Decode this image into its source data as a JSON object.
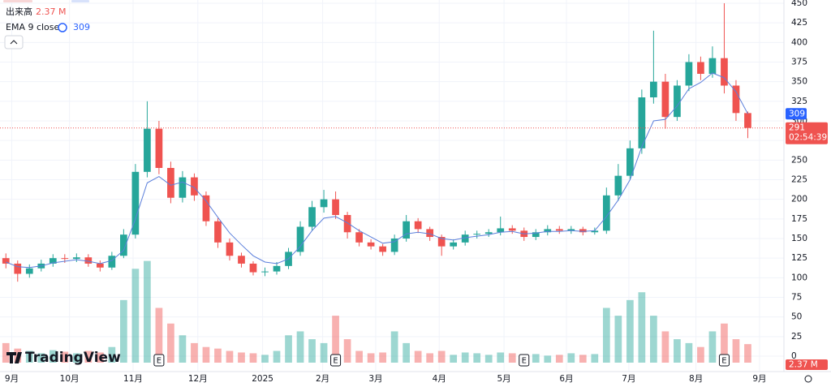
{
  "chart_data": {
    "type": "candlestick",
    "xlim": [
      -0.5,
      66
    ],
    "ylim": [
      0,
      450
    ],
    "yticks": [
      0,
      25,
      50,
      75,
      100,
      125,
      150,
      175,
      200,
      225,
      250,
      275,
      300,
      325,
      350,
      375,
      400,
      425,
      450
    ],
    "xticks": [
      {
        "value": 0.5,
        "label": "9月"
      },
      {
        "value": 5.4,
        "label": "10月"
      },
      {
        "value": 10.8,
        "label": "11月"
      },
      {
        "value": 16.3,
        "label": "12月"
      },
      {
        "value": 21.8,
        "label": "2025"
      },
      {
        "value": 26.9,
        "label": "2月"
      },
      {
        "value": 31.4,
        "label": "3月"
      },
      {
        "value": 36.8,
        "label": "4月"
      },
      {
        "value": 42.3,
        "label": "5月"
      },
      {
        "value": 47.6,
        "label": "6月"
      },
      {
        "value": 52.9,
        "label": "7月"
      },
      {
        "value": 58.6,
        "label": "8月"
      },
      {
        "value": 64,
        "label": "9月"
      }
    ],
    "grid": true,
    "up_color": "#26a69a",
    "down_color": "#ef5350",
    "open": [
      125,
      118,
      105,
      112,
      118,
      125,
      124,
      126,
      118,
      113,
      128,
      155,
      235,
      290,
      240,
      202,
      228,
      205,
      172,
      145,
      128,
      118,
      107,
      108,
      115,
      133,
      165,
      190,
      200,
      180,
      158,
      145,
      140,
      133,
      150,
      172,
      162,
      152,
      140,
      145,
      155,
      156,
      158,
      163,
      160,
      152,
      158,
      162,
      160,
      162,
      158,
      160,
      205,
      230,
      265,
      330,
      350,
      305,
      345,
      375,
      360,
      380,
      345,
      310
    ],
    "high": [
      131,
      122,
      117,
      123,
      130,
      130,
      131,
      130,
      122,
      133,
      162,
      245,
      325,
      300,
      248,
      236,
      233,
      210,
      176,
      150,
      132,
      121,
      113,
      120,
      138,
      172,
      198,
      212,
      210,
      184,
      162,
      149,
      143,
      155,
      180,
      176,
      165,
      155,
      149,
      160,
      160,
      162,
      178,
      167,
      164,
      162,
      167,
      166,
      166,
      165,
      164,
      215,
      245,
      275,
      340,
      415,
      360,
      352,
      385,
      382,
      395,
      450,
      352,
      312
    ],
    "low": [
      112,
      95,
      100,
      108,
      114,
      119,
      120,
      114,
      108,
      110,
      125,
      150,
      228,
      232,
      195,
      196,
      198,
      166,
      138,
      122,
      113,
      103,
      102,
      104,
      111,
      128,
      160,
      183,
      175,
      150,
      140,
      136,
      128,
      129,
      146,
      157,
      147,
      128,
      136,
      141,
      150,
      152,
      154,
      156,
      147,
      148,
      154,
      156,
      156,
      154,
      155,
      156,
      198,
      225,
      258,
      322,
      290,
      300,
      338,
      352,
      355,
      335,
      300,
      278
    ],
    "close": [
      118,
      105,
      112,
      118,
      125,
      124,
      126,
      118,
      113,
      128,
      155,
      235,
      290,
      240,
      202,
      228,
      205,
      172,
      145,
      128,
      118,
      107,
      108,
      115,
      133,
      165,
      190,
      200,
      180,
      158,
      145,
      140,
      133,
      150,
      172,
      162,
      152,
      140,
      145,
      155,
      156,
      158,
      163,
      160,
      152,
      158,
      162,
      160,
      162,
      158,
      160,
      205,
      230,
      265,
      330,
      350,
      305,
      345,
      375,
      360,
      380,
      345,
      310,
      291
    ],
    "volume": {
      "name": "出来高",
      "last_label": "2.37 M",
      "ylim": [
        0,
        14
      ],
      "values": [
        2.5,
        1.8,
        1.5,
        1.2,
        1.6,
        1.4,
        1.2,
        1.5,
        1.3,
        2.0,
        8.0,
        12.0,
        13.0,
        7.0,
        5.0,
        3.5,
        2.5,
        2.0,
        1.8,
        1.5,
        1.3,
        1.2,
        1.0,
        1.5,
        3.5,
        4.0,
        3.0,
        2.5,
        6.0,
        3.0,
        1.5,
        1.2,
        1.3,
        4.0,
        2.5,
        1.5,
        1.2,
        1.5,
        1.0,
        1.3,
        1.2,
        1.0,
        1.3,
        1.2,
        1.0,
        1.1,
        0.9,
        1.0,
        1.2,
        1.0,
        1.1,
        7.0,
        6.0,
        8.0,
        9.0,
        6.0,
        4.0,
        3.0,
        2.5,
        2.0,
        4.0,
        5.0,
        3.0,
        2.37
      ]
    },
    "ema": {
      "name": "EMA 9 close",
      "color": "#5b7fdb",
      "values": [
        120,
        114,
        113,
        115,
        119,
        121,
        123,
        121,
        118,
        122,
        135,
        175,
        221,
        229,
        218,
        222,
        215,
        198,
        177,
        157,
        142,
        128,
        120,
        118,
        124,
        140,
        160,
        176,
        178,
        170,
        160,
        152,
        144,
        146,
        156,
        158,
        156,
        150,
        148,
        151,
        153,
        155,
        158,
        159,
        156,
        157,
        159,
        159,
        160,
        159,
        160,
        178,
        199,
        225,
        267,
        300,
        302,
        319,
        341,
        349,
        361,
        355,
        337,
        309
      ]
    },
    "countdown": "02:54:39",
    "events": [
      {
        "index": 13,
        "label": "E"
      },
      {
        "index": 28,
        "label": "E"
      },
      {
        "index": 44,
        "label": "E"
      },
      {
        "index": 61,
        "label": "E"
      }
    ],
    "brand": "TradingView"
  }
}
